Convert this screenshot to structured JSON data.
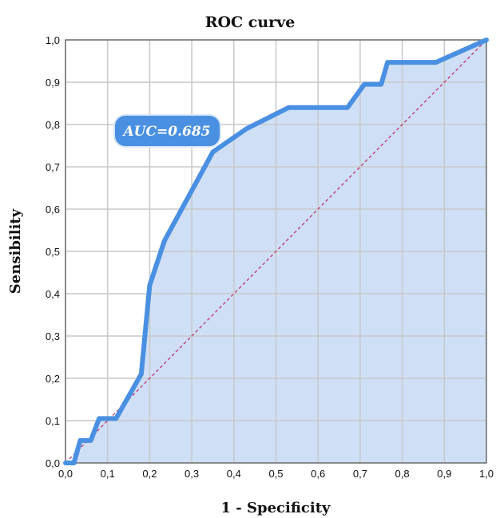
{
  "chart_data": {
    "type": "line",
    "title": "ROC curve",
    "xlabel": "1 - Specificity",
    "ylabel": "Sensibility",
    "xlim": [
      0,
      1
    ],
    "ylim": [
      0,
      1
    ],
    "grid": true,
    "x_ticks": [
      "0,0",
      "0,1",
      "0,2",
      "0,3",
      "0,4",
      "0,5",
      "0,6",
      "0,7",
      "0,8",
      "0,9",
      "1,0"
    ],
    "y_ticks": [
      "0,0",
      "0,1",
      "0,2",
      "0,3",
      "0,4",
      "0,5",
      "0,6",
      "0,7",
      "0,8",
      "0,9",
      "1,0"
    ],
    "annotation": "AUC=0.685",
    "series": [
      {
        "x": [
          0.0,
          0.02,
          0.035,
          0.06,
          0.08,
          0.12,
          0.18,
          0.2,
          0.235,
          0.35,
          0.43,
          0.53,
          0.67,
          0.71,
          0.75,
          0.765,
          0.88,
          1.0
        ],
        "y": [
          0.0,
          0.0,
          0.053,
          0.053,
          0.105,
          0.105,
          0.21,
          0.42,
          0.525,
          0.735,
          0.79,
          0.84,
          0.84,
          0.895,
          0.895,
          0.947,
          0.947,
          1.0
        ]
      },
      {
        "x": [
          0,
          1
        ],
        "y": [
          0,
          1
        ]
      }
    ],
    "colors": {
      "roc_line": "#4a90e2",
      "roc_fill": "#cfe0f6",
      "diagonal": "#c0437a",
      "grid": "#c8c8c8",
      "label_box": "#4a90e2"
    }
  }
}
